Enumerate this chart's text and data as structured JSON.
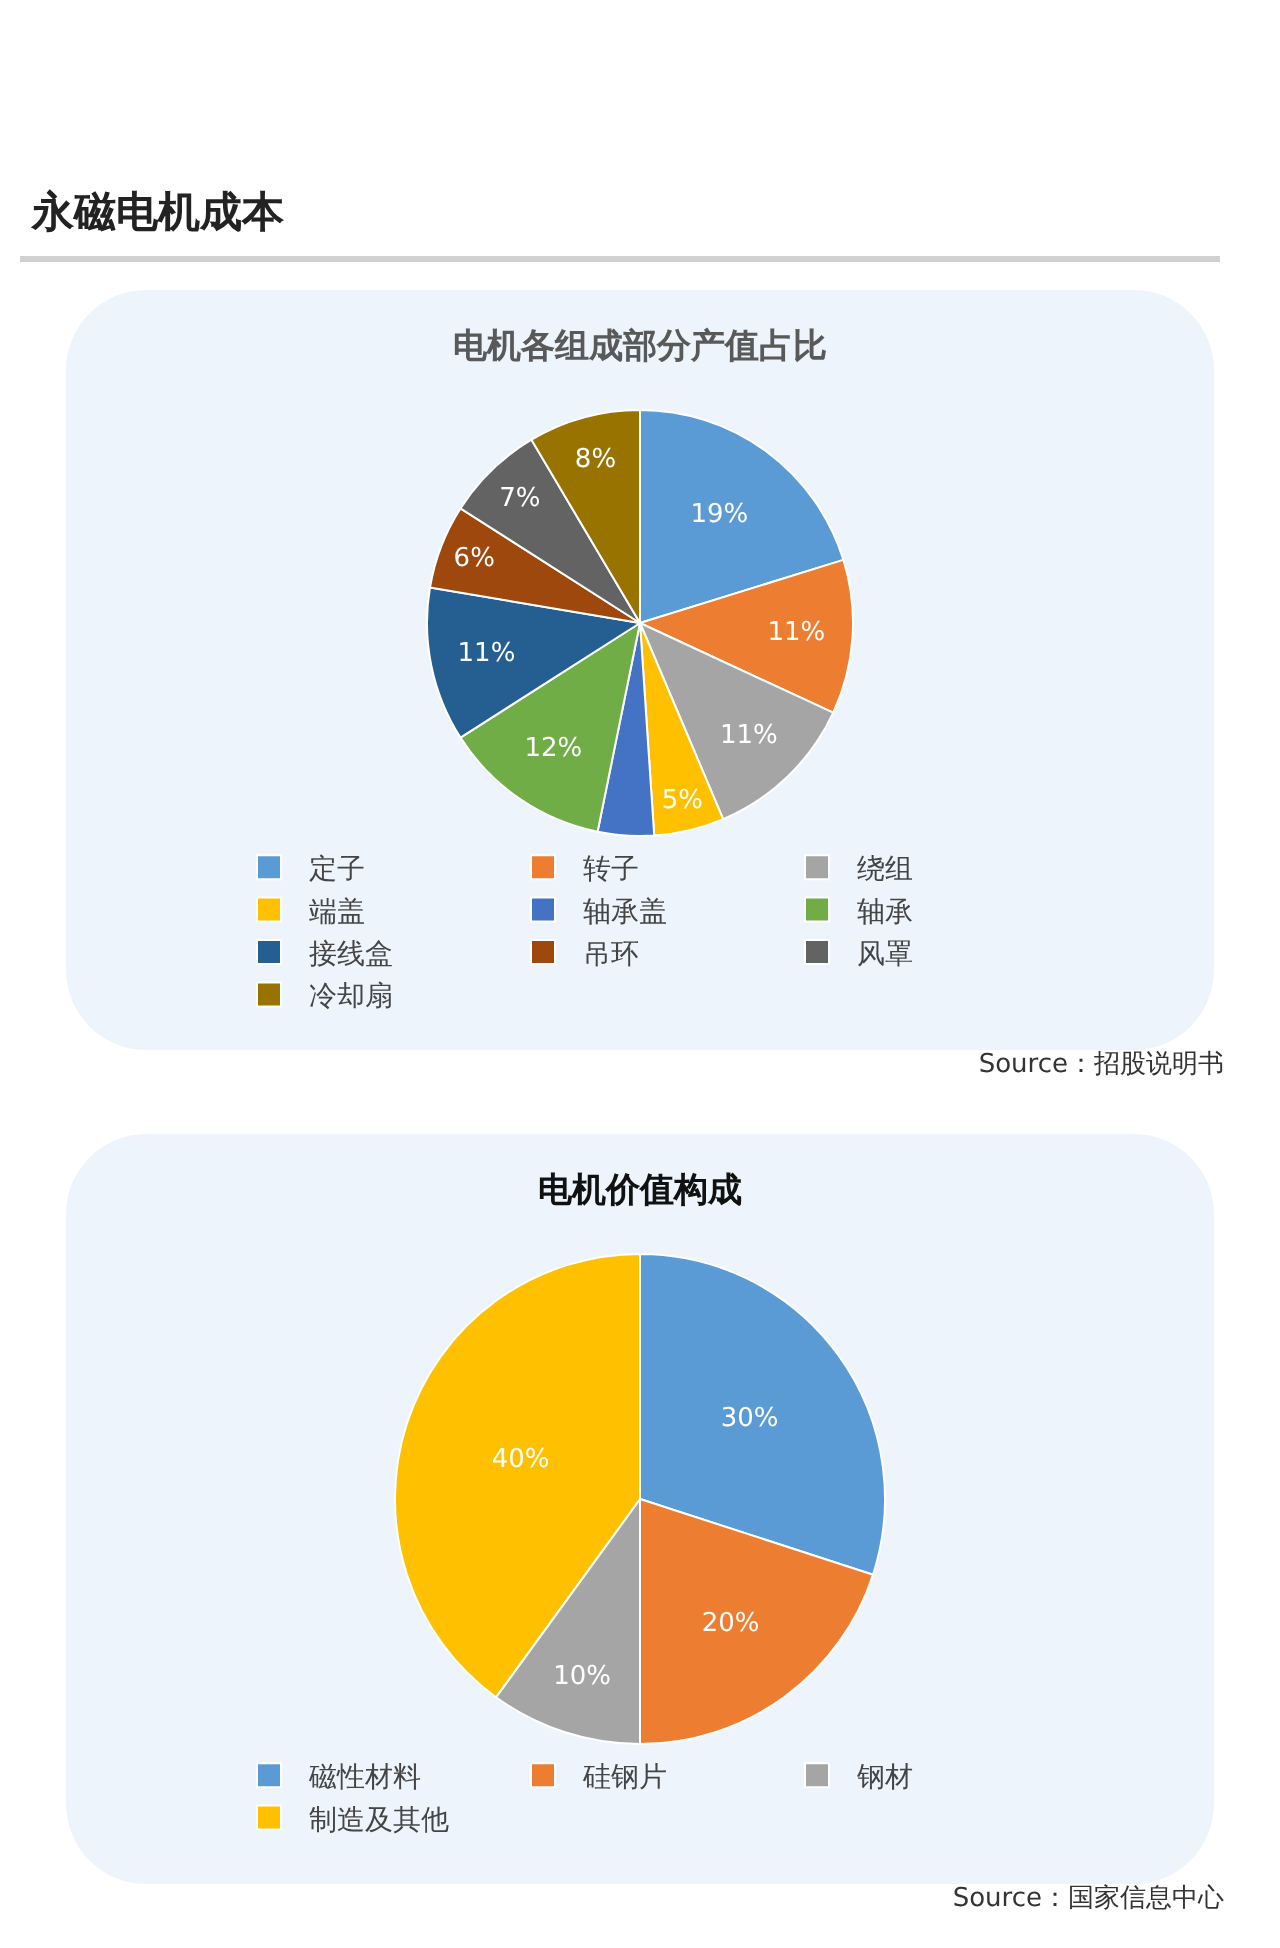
{
  "chart_data": [
    {
      "type": "pie",
      "title": "永磁电机成本",
      "subtitle": "电机各组成部分产值占比",
      "categories": [
        "定子",
        "转子",
        "绕组",
        "端盖",
        "轴承盖",
        "轴承",
        "接线盒",
        "吊环",
        "风罩",
        "冷却扇"
      ],
      "values": [
        19,
        11,
        11,
        5,
        4,
        12,
        11,
        6,
        7,
        8
      ],
      "value_labels": [
        "19%",
        "11%",
        "11%",
        "5%",
        null,
        "12%",
        "11%",
        "6%",
        "7%",
        "8%"
      ],
      "colors": [
        "#5b9bd5",
        "#ed7d31",
        "#a5a5a5",
        "#ffc000",
        "#4472c4",
        "#70ad47",
        "#255e91",
        "#9e480e",
        "#636363",
        "#997300"
      ],
      "legend": "bottom",
      "annotations": [
        "Source：招股说明书"
      ]
    },
    {
      "type": "pie",
      "title": "电机价值构成",
      "categories": [
        "磁性材料",
        "硅钢片",
        "钢材",
        "制造及其他"
      ],
      "values": [
        30,
        20,
        10,
        40
      ],
      "value_labels": [
        "30%",
        "20%",
        "10%",
        "40%"
      ],
      "colors": [
        "#5b9bd5",
        "#ed7d31",
        "#a5a5a5",
        "#ffc000"
      ],
      "legend": "bottom",
      "annotations": [
        "Source：国家信息中心"
      ]
    }
  ]
}
